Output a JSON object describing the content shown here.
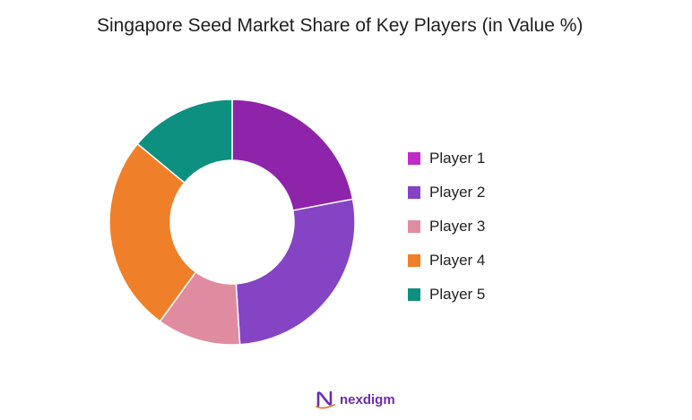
{
  "chart_data": {
    "type": "pie",
    "title": "Singapore Seed Market Share of Key Players (in Value %)",
    "categories": [
      "Player 1",
      "Player 2",
      "Player 3",
      "Player 4",
      "Player 5"
    ],
    "values": [
      22,
      27,
      11,
      26,
      14
    ],
    "colors": [
      "#8e24aa",
      "#8444c4",
      "#e08ca0",
      "#f07f2a",
      "#0e9080"
    ],
    "legend_colors": [
      "#c02bc8",
      "#8444c4",
      "#e08ca0",
      "#f07f2a",
      "#0e9080"
    ],
    "legend": "right",
    "style": "donut"
  },
  "brand": {
    "name": "nexdigm",
    "icon": "nexdigm-logo-icon"
  }
}
